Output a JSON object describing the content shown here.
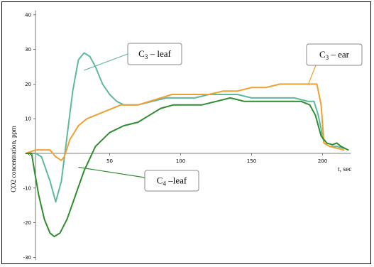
{
  "chart_data": {
    "type": "line",
    "title": "",
    "xlabel": "t, sec",
    "ylabel": "CO2 concentration, ppm",
    "xlim": [
      -15,
      220
    ],
    "ylim": [
      -30,
      40
    ],
    "x_ticks": [
      50,
      100,
      150,
      200
    ],
    "y_ticks": [
      -30,
      -20,
      -10,
      0,
      10,
      20,
      30,
      40
    ],
    "grid": false,
    "legend": "callouts",
    "annotations": [
      {
        "sub_before": "C",
        "sub": "3",
        "after": " – leaf",
        "series": "C3 – leaf"
      },
      {
        "sub_before": "C",
        "sub": "3",
        "after": " – ear",
        "series": "C3 – ear"
      },
      {
        "sub_before": "C",
        "sub": "4",
        "after": " –leaf",
        "series": "C4 –leaf"
      }
    ],
    "series": [
      {
        "name": "C3 – leaf",
        "color": "#5fb89e",
        "points": [
          [
            -9,
            0
          ],
          [
            -2,
            0
          ],
          [
            2,
            -1
          ],
          [
            8,
            -8
          ],
          [
            12,
            -14
          ],
          [
            16,
            -8
          ],
          [
            20,
            5
          ],
          [
            24,
            18
          ],
          [
            28,
            27
          ],
          [
            32,
            29
          ],
          [
            36,
            28
          ],
          [
            40,
            25
          ],
          [
            45,
            20
          ],
          [
            50,
            17
          ],
          [
            55,
            15
          ],
          [
            60,
            14
          ],
          [
            70,
            14
          ],
          [
            80,
            15
          ],
          [
            90,
            16
          ],
          [
            100,
            16
          ],
          [
            110,
            16
          ],
          [
            120,
            17
          ],
          [
            130,
            17
          ],
          [
            140,
            17
          ],
          [
            150,
            16
          ],
          [
            160,
            16
          ],
          [
            170,
            16
          ],
          [
            180,
            16
          ],
          [
            190,
            15
          ],
          [
            194,
            15
          ],
          [
            197,
            11
          ],
          [
            201,
            3
          ],
          [
            205,
            2
          ],
          [
            210,
            2
          ],
          [
            215,
            1.5
          ]
        ]
      },
      {
        "name": "C3 – ear",
        "color": "#f0a030",
        "points": [
          [
            -9,
            0
          ],
          [
            -2,
            1
          ],
          [
            8,
            1
          ],
          [
            12,
            -1
          ],
          [
            16,
            -2
          ],
          [
            18,
            -1
          ],
          [
            22,
            4
          ],
          [
            28,
            8
          ],
          [
            34,
            10
          ],
          [
            40,
            11
          ],
          [
            46,
            12
          ],
          [
            52,
            13
          ],
          [
            58,
            14
          ],
          [
            65,
            14
          ],
          [
            70,
            14
          ],
          [
            78,
            15
          ],
          [
            86,
            16
          ],
          [
            94,
            17
          ],
          [
            110,
            17
          ],
          [
            120,
            17
          ],
          [
            130,
            18
          ],
          [
            140,
            18
          ],
          [
            150,
            19
          ],
          [
            160,
            19
          ],
          [
            170,
            20
          ],
          [
            180,
            20
          ],
          [
            190,
            20
          ],
          [
            196,
            20
          ],
          [
            199,
            14
          ],
          [
            201,
            3
          ],
          [
            205,
            2
          ],
          [
            210,
            1.5
          ],
          [
            215,
            1
          ]
        ]
      },
      {
        "name": "C4 –leaf",
        "color": "#2f8c2f",
        "points": [
          [
            -9,
            0
          ],
          [
            -5,
            0
          ],
          [
            -3,
            -5
          ],
          [
            0,
            -12
          ],
          [
            4,
            -19
          ],
          [
            8,
            -23
          ],
          [
            11,
            -24
          ],
          [
            15,
            -23
          ],
          [
            20,
            -19
          ],
          [
            26,
            -12
          ],
          [
            32,
            -5
          ],
          [
            40,
            2
          ],
          [
            50,
            6
          ],
          [
            60,
            8
          ],
          [
            70,
            9
          ],
          [
            78,
            11
          ],
          [
            86,
            13
          ],
          [
            95,
            14
          ],
          [
            105,
            14
          ],
          [
            115,
            14
          ],
          [
            125,
            15
          ],
          [
            135,
            16
          ],
          [
            145,
            15
          ],
          [
            155,
            15
          ],
          [
            165,
            15
          ],
          [
            175,
            15
          ],
          [
            185,
            15
          ],
          [
            191,
            14
          ],
          [
            195,
            11
          ],
          [
            199,
            5
          ],
          [
            203,
            3
          ],
          [
            207,
            2.5
          ],
          [
            210,
            3
          ],
          [
            213,
            2
          ],
          [
            218,
            1
          ]
        ]
      }
    ]
  }
}
